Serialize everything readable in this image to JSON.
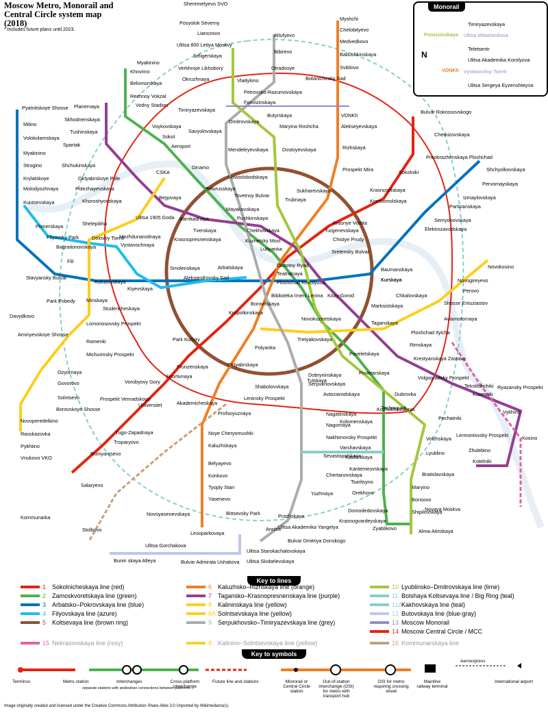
{
  "title": "Moscow Metro, Monorail and Central Circle system map (2018)",
  "note": "* Includes future plans until 2023.",
  "monorail_inset": {
    "header": "Monorail",
    "stations": [
      "Timiryazevskaya",
      "Ulitsa Milashenkova",
      "Teletsentr",
      "Ulitsa Akademika Korolyova",
      "Vystavochny Tsentr",
      "Ulitsa Sergeya Eyzenshteyna"
    ],
    "transfers": [
      "Fonvizinskaya",
      "VDNKh"
    ],
    "compass": "N"
  },
  "station_labels": [
    {
      "text": "Sheremetyevo SVO"
    },
    {
      "text": "Posyolok Severny"
    },
    {
      "text": "Lianozovo"
    },
    {
      "text": "Ulitsa 800 Letiya Moskvy"
    },
    {
      "text": "Altufyevo"
    },
    {
      "text": "Bibirevo"
    },
    {
      "text": "Otradnoye"
    },
    {
      "text": "Seligerskaya"
    },
    {
      "text": "Verkhniye Likhobory"
    },
    {
      "text": "Okruzhnaya"
    },
    {
      "text": "Vladykino"
    },
    {
      "text": "Petrovsko-Razumovskaya"
    },
    {
      "text": "Fonvizinskaya"
    },
    {
      "text": "Myakinino"
    },
    {
      "text": "Khovrino"
    },
    {
      "text": "Belomorskaya"
    },
    {
      "text": "Rechnoy Vokzal"
    },
    {
      "text": "Vodny Stadion"
    },
    {
      "text": "Voykovskaya"
    },
    {
      "text": "Sokol"
    },
    {
      "text": "Aeroport"
    },
    {
      "text": "Dinamo"
    },
    {
      "text": "Savyolovskaya"
    },
    {
      "text": "Timiryazevskaya"
    },
    {
      "text": "Dmitrovskaya"
    },
    {
      "text": "Butyrskaya"
    },
    {
      "text": "Maryina Roshcha"
    },
    {
      "text": "Dostoyevskaya"
    },
    {
      "text": "Mendeleyevskaya"
    },
    {
      "text": "Novoslobodskaya"
    },
    {
      "text": "Belorusskaya"
    },
    {
      "text": "Myshchi"
    },
    {
      "text": "Chelobityevo"
    },
    {
      "text": "Medvedkovo"
    },
    {
      "text": "Babushkinskaya"
    },
    {
      "text": "Sviblovo"
    },
    {
      "text": "Botanichesky Sad"
    },
    {
      "text": "VDNKh"
    },
    {
      "text": "Alekseyevskaya"
    },
    {
      "text": "Rizhskaya"
    },
    {
      "text": "Prospekt Mira"
    },
    {
      "text": "Sukharevskaya"
    },
    {
      "text": "Trubnaya"
    },
    {
      "text": "Tsvetnoy Bulvar"
    },
    {
      "text": "Chekhovskaya"
    },
    {
      "text": "Pushkinskaya"
    },
    {
      "text": "Tverskaya"
    },
    {
      "text": "Mayakovskaya"
    },
    {
      "text": "Turgenevskaya"
    },
    {
      "text": "Chistye Prudy"
    },
    {
      "text": "Sretensky Bulvar"
    },
    {
      "text": "Krasnye Vorota"
    },
    {
      "text": "Komsomolskaya"
    },
    {
      "text": "Krasnoselskaya"
    },
    {
      "text": "Sokolniki"
    },
    {
      "text": "Preobrazhenskaya Ploshchad"
    },
    {
      "text": "Cherkizovskaya"
    },
    {
      "text": "Bulvar Rokossovskogo"
    },
    {
      "text": "Shchyolkovskaya"
    },
    {
      "text": "Pervomayskaya"
    },
    {
      "text": "Izmaylovskaya"
    },
    {
      "text": "Partizanskaya"
    },
    {
      "text": "Semyonovskaya"
    },
    {
      "text": "Elektrozavodskaya"
    },
    {
      "text": "Baumanskaya"
    },
    {
      "text": "Kurskaya"
    },
    {
      "text": "Chkalovskaya"
    },
    {
      "text": "Kitay-Gorod"
    },
    {
      "text": "Kuznetsky Most"
    },
    {
      "text": "Lubyanka"
    },
    {
      "text": "Okhotny Ryad"
    },
    {
      "text": "Teatralnaya"
    },
    {
      "text": "Ploshchad Revolyutsii"
    },
    {
      "text": "Biblioteka Imeni Lenina"
    },
    {
      "text": "Aleksandrovsky Sad"
    },
    {
      "text": "Arbatskaya"
    },
    {
      "text": "Borovitskaya"
    },
    {
      "text": "Kropotkinskaya"
    },
    {
      "text": "Smolenskaya"
    },
    {
      "text": "Kiyevskaya"
    },
    {
      "text": "Barrikadnaya"
    },
    {
      "text": "Krasnopresnenskaya"
    },
    {
      "text": "Ulitsa 1905 Goda"
    },
    {
      "text": "Vystavochnaya"
    },
    {
      "text": "Mezhdunarodnaya"
    },
    {
      "text": "Delovoy Tsentr"
    },
    {
      "text": "Kutuzovskaya"
    },
    {
      "text": "Studencheskaya"
    },
    {
      "text": "Park Pobedy"
    },
    {
      "text": "Slavyansky Bulvar"
    },
    {
      "text": "Fili"
    },
    {
      "text": "Bagrationovskaya"
    },
    {
      "text": "Filyovsky Park"
    },
    {
      "text": "Pionerskaya"
    },
    {
      "text": "Kuntsevskaya"
    },
    {
      "text": "Molodyozhnaya"
    },
    {
      "text": "Krylatskoye"
    },
    {
      "text": "Strogino"
    },
    {
      "text": "Myakinino"
    },
    {
      "text": "Volokolamskaya"
    },
    {
      "text": "Mitino"
    },
    {
      "text": "Pyatnitskoye Shosse"
    },
    {
      "text": "Planernaya"
    },
    {
      "text": "Skhodnenskaya"
    },
    {
      "text": "Tushinskaya"
    },
    {
      "text": "Spartak"
    },
    {
      "text": "Shchukinskaya"
    },
    {
      "text": "Oktyabrskoye Pole"
    },
    {
      "text": "Polezhayevskaya"
    },
    {
      "text": "Khoroshyovskaya"
    },
    {
      "text": "Begovaya"
    },
    {
      "text": "CSKA"
    },
    {
      "text": "Shelepikha"
    },
    {
      "text": "Kurskaya"
    },
    {
      "text": "Marksistskaya"
    },
    {
      "text": "Taganskaya"
    },
    {
      "text": "Ploshchad Ilyicha"
    },
    {
      "text": "Rimskaya"
    },
    {
      "text": "Aviamotornaya"
    },
    {
      "text": "Shosse Entuziastov"
    },
    {
      "text": "Perovo"
    },
    {
      "text": "Novogireyevo"
    },
    {
      "text": "Novokosino"
    },
    {
      "text": "Tretyakovskaya"
    },
    {
      "text": "Novokuznetskaya"
    },
    {
      "text": "Polyanka"
    },
    {
      "text": "Oktyabrskaya"
    },
    {
      "text": "Dobryninskaya"
    },
    {
      "text": "Serpukhovskaya"
    },
    {
      "text": "Paveletskaya"
    },
    {
      "text": "Proletarskaya"
    },
    {
      "text": "Krestyanskaya Zastava"
    },
    {
      "text": "Volgogradsky Prospekt"
    },
    {
      "text": "Tekstilshchiki"
    },
    {
      "text": "Kuzminki"
    },
    {
      "text": "Ryazansky Prospekt"
    },
    {
      "text": "Vykhino"
    },
    {
      "text": "Lermontovsky Prospekt"
    },
    {
      "text": "Zhulebino"
    },
    {
      "text": "Kotelniki"
    },
    {
      "text": "Kosino"
    },
    {
      "text": "Dubrovka"
    },
    {
      "text": "Kozhukhovskaya"
    },
    {
      "text": "Pechatniki"
    },
    {
      "text": "Volzhskaya"
    },
    {
      "text": "Lyublino"
    },
    {
      "text": "Bratislavskaya"
    },
    {
      "text": "Maryino"
    },
    {
      "text": "Borisovo"
    },
    {
      "text": "Shipilovskaya"
    },
    {
      "text": "Zyablikovo"
    },
    {
      "text": "Krasnogvardeyskaya"
    },
    {
      "text": "Alma-Atinskaya"
    },
    {
      "text": "Tulskaya"
    },
    {
      "text": "Nagatinskaya"
    },
    {
      "text": "Nagornaya"
    },
    {
      "text": "Nakhimovsky Prospekt"
    },
    {
      "text": "Sevastopolskaya"
    },
    {
      "text": "Chertanovskaya"
    },
    {
      "text": "Yuzhnaya"
    },
    {
      "text": "Prazhskaya"
    },
    {
      "text": "Ulitsa Akademika Yangelya"
    },
    {
      "text": "Annino"
    },
    {
      "text": "Bulvar Dmitriya Donskogo"
    },
    {
      "text": "Ulitsa Starokachalovskaya"
    },
    {
      "text": "Ulitsa Skobelevskaya"
    },
    {
      "text": "Bunin skaya Alleya"
    },
    {
      "text": "Bulvar Admirala Ushakova"
    },
    {
      "text": "Ulitsa Gorchakova"
    },
    {
      "text": "Avtozavodskaya"
    },
    {
      "text": "Kolomenskaya"
    },
    {
      "text": "Kashirskaya"
    },
    {
      "text": "Varshavskaya"
    },
    {
      "text": "Kantemirovskaya"
    },
    {
      "text": "Tsaritsyno"
    },
    {
      "text": "Orekhovo"
    },
    {
      "text": "Domodedovskaya"
    },
    {
      "text": "Technopark"
    },
    {
      "text": "Shabolovskaya"
    },
    {
      "text": "Leninsky Prospekt"
    },
    {
      "text": "Akademicheskaya"
    },
    {
      "text": "Profsoyuznaya"
    },
    {
      "text": "Noye Cheryomushki"
    },
    {
      "text": "Kaluzhskaya"
    },
    {
      "text": "Belyayevo"
    },
    {
      "text": "Konkovo"
    },
    {
      "text": "Tyoply Stan"
    },
    {
      "text": "Yasenevo"
    },
    {
      "text": "Novoyasenevskaya"
    },
    {
      "text": "Bittsevsky Park"
    },
    {
      "text": "Lesoparkovaya"
    },
    {
      "text": "Park Kultury"
    },
    {
      "text": "Frunzenskaya"
    },
    {
      "text": "Sportivnaya"
    },
    {
      "text": "Vorobyovy Gory"
    },
    {
      "text": "Universitet"
    },
    {
      "text": "Prospekt Vernadskogo"
    },
    {
      "text": "Yugo-Zapadnaya"
    },
    {
      "text": "Troparyovo"
    },
    {
      "text": "Rumyantsevo"
    },
    {
      "text": "Salaryevo"
    },
    {
      "text": "Minskaya"
    },
    {
      "text": "Lomonosovsky Prospekt"
    },
    {
      "text": "Ramenki"
    },
    {
      "text": "Michurinsky Prospekt"
    },
    {
      "text": "Ozyornaya"
    },
    {
      "text": "Govorovo"
    },
    {
      "text": "Solntsevo"
    },
    {
      "text": "Borovskoye Shosse"
    },
    {
      "text": "Novoperedelkino"
    },
    {
      "text": "Rasskazovka"
    },
    {
      "text": "Pykhtino"
    },
    {
      "text": "Vnukovo VKO"
    },
    {
      "text": "Aminyevskoye Shosse"
    },
    {
      "text": "Davydkovo"
    },
    {
      "text": "Kommunarka"
    },
    {
      "text": "Stolbovo"
    },
    {
      "text": "Novaya Moskva"
    }
  ],
  "lines_key_header": "Key to lines",
  "lines": [
    {
      "num": "1",
      "name": "Sokolnicheskaya line",
      "color_word": "(red)",
      "color": "#e42313"
    },
    {
      "num": "2",
      "name": "Zamoskvoretskaya line",
      "color_word": "(green)",
      "color": "#4fb04f"
    },
    {
      "num": "3",
      "name": "Arbatsko–Pokrovskaya line",
      "color_word": "(blue)",
      "color": "#0072ba"
    },
    {
      "num": "4",
      "name": "Filyovskaya line",
      "color_word": "(azure)",
      "color": "#1ebcef"
    },
    {
      "num": "5",
      "name": "Koltsevaya line",
      "color_word": "(brown ring)",
      "color": "#915133"
    },
    {
      "num": "6",
      "name": "Kaluzhsko–Rizhskaya line",
      "color_word": "(orange)",
      "color": "#f07e24"
    },
    {
      "num": "7",
      "name": "Tagansko–Krasnopresnenskaya line",
      "color_word": "(purple)",
      "color": "#943e90"
    },
    {
      "num": "8",
      "name": "Kalininskaya line",
      "color_word": "(yellow)",
      "color": "#ffcd1c"
    },
    {
      "num": "8A",
      "name": "Solntsevskaya line",
      "color_word": "(yellow)",
      "color": "#ffcd1c"
    },
    {
      "num": "9",
      "name": "Serpukhovsko–Timiryazevskaya line",
      "color_word": "(grey)",
      "color": "#adacac"
    },
    {
      "num": "10",
      "name": "Lyublinsko–Dmitrovskaya line",
      "color_word": "(lime)",
      "color": "#a2c83a"
    },
    {
      "num": "11",
      "name": "Bolshaya Koltsevaya line / Big Ring",
      "color_word": "(teal)",
      "color": "#88cdcf"
    },
    {
      "num": "11A",
      "name": "Kakhovskaya line",
      "color_word": "(teal)",
      "color": "#88cdcf"
    },
    {
      "num": "12",
      "name": "Butovskaya line",
      "color_word": "(blue-gray)",
      "color": "#bac8e8"
    },
    {
      "num": "13",
      "name": "Moscow Monorail",
      "color_word": "",
      "color": "#8d8dcc"
    },
    {
      "num": "14",
      "name": "Moscow Central Circle / MCC",
      "color_word": "",
      "color": "#e42313"
    },
    {
      "num": "15",
      "name": "Nekrasovskaya line",
      "color_word": "(rosy)",
      "color": "#de64a1"
    },
    {
      "num": "8",
      "name": "Kalinino–Solntsevskaya line",
      "color_word": "(yellow)",
      "color": "#ffcd1c"
    },
    {
      "num": "16",
      "name": "Kommunarskaya line",
      "color_word": "",
      "color": "#c8a07a"
    }
  ],
  "symbols_key_header": "Key to symbols",
  "symbols": {
    "terminus": "Terminus",
    "station": "Metro station",
    "interchanges": "Interchanges",
    "interchanges_note": "separate stations with pedestrian connections between platforms",
    "cross_platform": "Cross-platform interchange",
    "future": "Future line and stations",
    "monorail": "Monorail or Central Circle station",
    "osi": "Out-of-station interchange (OSI) for metro with transport hub",
    "osi_crossing": "OSI for metro requiring crossing street",
    "railway": "Mainline railway terminal",
    "aeroexpress": "Aeroexpress",
    "airport": "International airport"
  },
  "credit": "Image originally created and licensed under the Creative Commons Attribution-Share Alike 3.0 Unported by Wikimedians(s)."
}
